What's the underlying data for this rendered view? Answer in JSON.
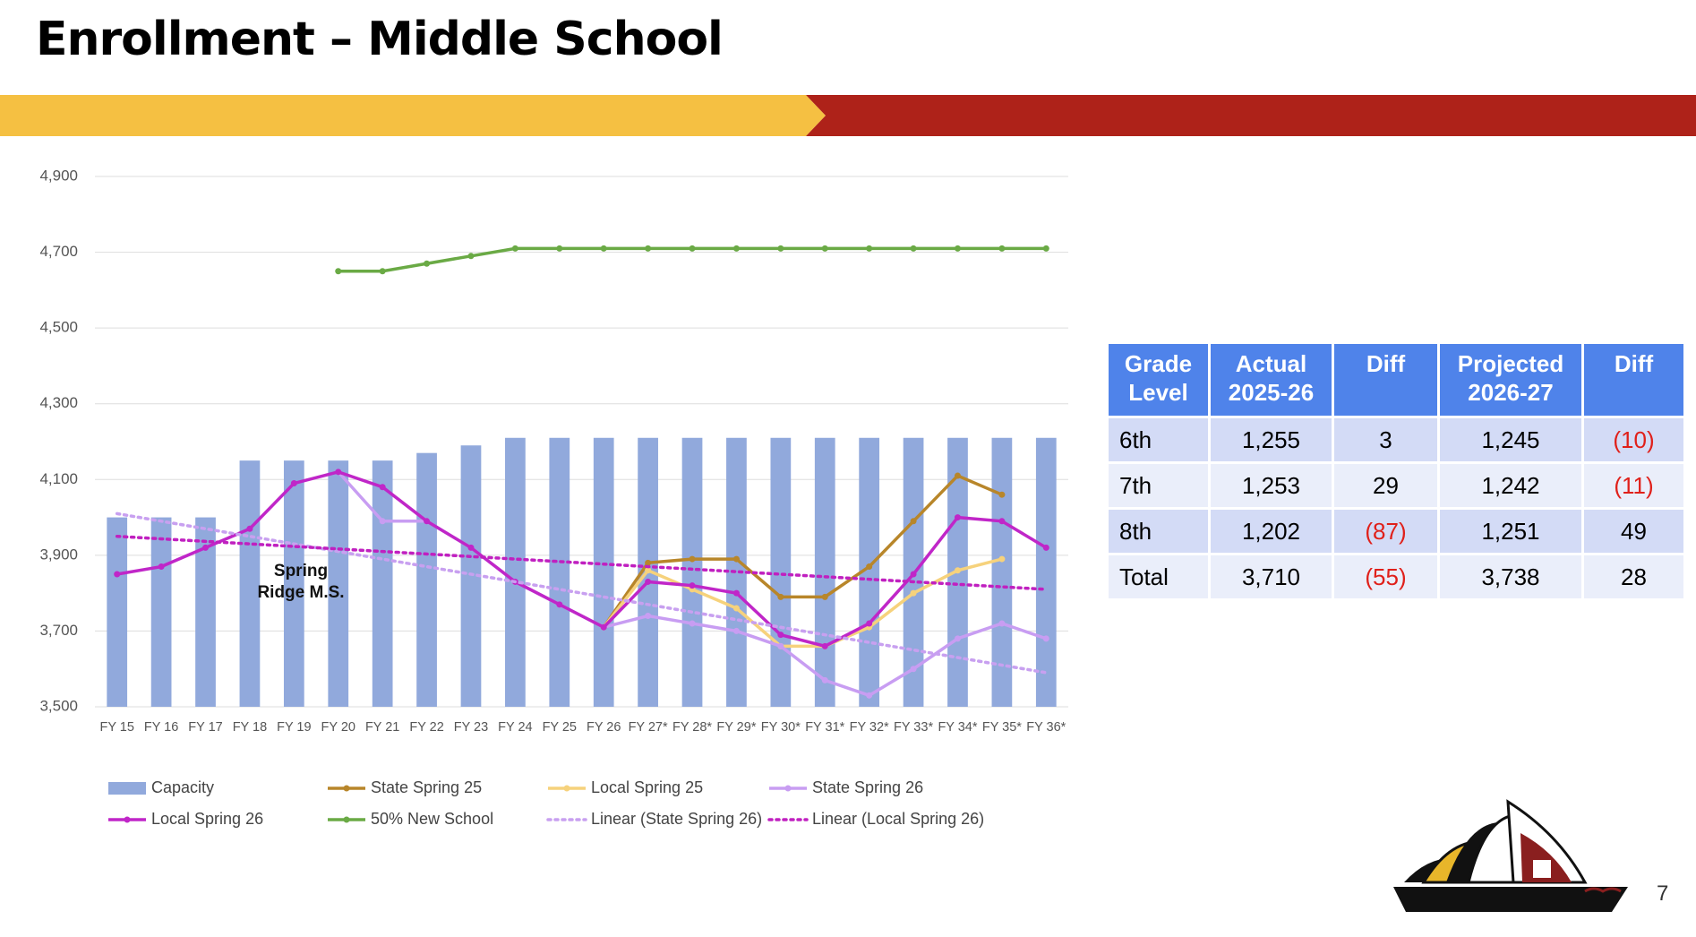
{
  "slide": {
    "title": "Enrollment – Middle School",
    "page_number": "7"
  },
  "chart_data": {
    "type": "combo",
    "categories": [
      "FY 15",
      "FY 16",
      "FY 17",
      "FY 18",
      "FY 19",
      "FY 20",
      "FY 21",
      "FY 22",
      "FY 23",
      "FY 24",
      "FY 25",
      "FY 26",
      "FY 27*",
      "FY 28*",
      "FY 29*",
      "FY 30*",
      "FY 31*",
      "FY 32*",
      "FY 33*",
      "FY 34*",
      "FY 35*",
      "FY 36*"
    ],
    "ylim": [
      3500,
      4900
    ],
    "yticks": [
      {
        "value": 3500,
        "label": "3,500"
      },
      {
        "value": 3700,
        "label": "3,700"
      },
      {
        "value": 3900,
        "label": "3,900"
      },
      {
        "value": 4100,
        "label": "4,100"
      },
      {
        "value": 4300,
        "label": "4,300"
      },
      {
        "value": 4500,
        "label": "4,500"
      },
      {
        "value": 4700,
        "label": "4,700"
      },
      {
        "value": 4900,
        "label": "4,900"
      }
    ],
    "grid": true,
    "series": [
      {
        "name": "Capacity",
        "type": "bar",
        "color": "#91a9dc",
        "values": [
          4000,
          4000,
          4000,
          4150,
          4150,
          4150,
          4150,
          4170,
          4190,
          4210,
          4210,
          4210,
          4210,
          4210,
          4210,
          4210,
          4210,
          4210,
          4210,
          4210,
          4210,
          4210
        ]
      },
      {
        "name": "State Spring 25",
        "type": "line",
        "color": "#b8862a",
        "values": [
          null,
          null,
          null,
          null,
          null,
          null,
          null,
          null,
          null,
          null,
          null,
          3710,
          3880,
          3890,
          3890,
          3790,
          3790,
          3870,
          3990,
          4110,
          4060,
          null
        ]
      },
      {
        "name": "Local Spring 25",
        "type": "line",
        "color": "#f6d27c",
        "values": [
          null,
          null,
          null,
          null,
          null,
          null,
          null,
          null,
          null,
          null,
          null,
          3710,
          3860,
          3810,
          3760,
          3660,
          3660,
          3710,
          3800,
          3860,
          3890,
          null
        ]
      },
      {
        "name": "State Spring 26",
        "type": "line",
        "color": "#c89df2",
        "values": [
          null,
          null,
          null,
          null,
          null,
          4120,
          3990,
          3990,
          3920,
          3830,
          3770,
          3710,
          3740,
          3720,
          3700,
          3660,
          3570,
          3530,
          3600,
          3680,
          3720,
          3680
        ]
      },
      {
        "name": "Local Spring 26",
        "type": "line",
        "color": "#c026c8",
        "values": [
          3850,
          3870,
          3920,
          3970,
          4090,
          4120,
          4080,
          3990,
          3920,
          3830,
          3770,
          3710,
          3830,
          3820,
          3800,
          3690,
          3660,
          3720,
          3850,
          4000,
          3990,
          3920
        ]
      },
      {
        "name": "50% New School",
        "type": "line",
        "color": "#6aaa45",
        "values": [
          null,
          null,
          null,
          null,
          null,
          4650,
          4650,
          4670,
          4690,
          4710,
          4710,
          4710,
          4710,
          4710,
          4710,
          4710,
          4710,
          4710,
          4710,
          4710,
          4710,
          4710
        ]
      }
    ],
    "trendlines": [
      {
        "name": "Linear (State Spring 26)",
        "color": "#c8a0f0",
        "from": 4010,
        "to": 3590
      },
      {
        "name": "Linear (Local Spring 26)",
        "color": "#c020c0",
        "from": 3950,
        "to": 3810
      }
    ],
    "annotations": [
      {
        "text": "Spring Ridge M.S."
      }
    ]
  },
  "table": {
    "header": [
      "Grade Level",
      "Actual 2025-26",
      "Diff",
      "Projected 2026-27",
      "Diff"
    ],
    "rows": [
      [
        "6th",
        "1,255",
        "3",
        "1,245",
        "(10)"
      ],
      [
        "7th",
        "1,253",
        "29",
        "1,242",
        "(11)"
      ],
      [
        "8th",
        "1,202",
        "(87)",
        "1,251",
        "49"
      ],
      [
        "Total",
        "3,710",
        "(55)",
        "3,738",
        "28"
      ]
    ]
  }
}
